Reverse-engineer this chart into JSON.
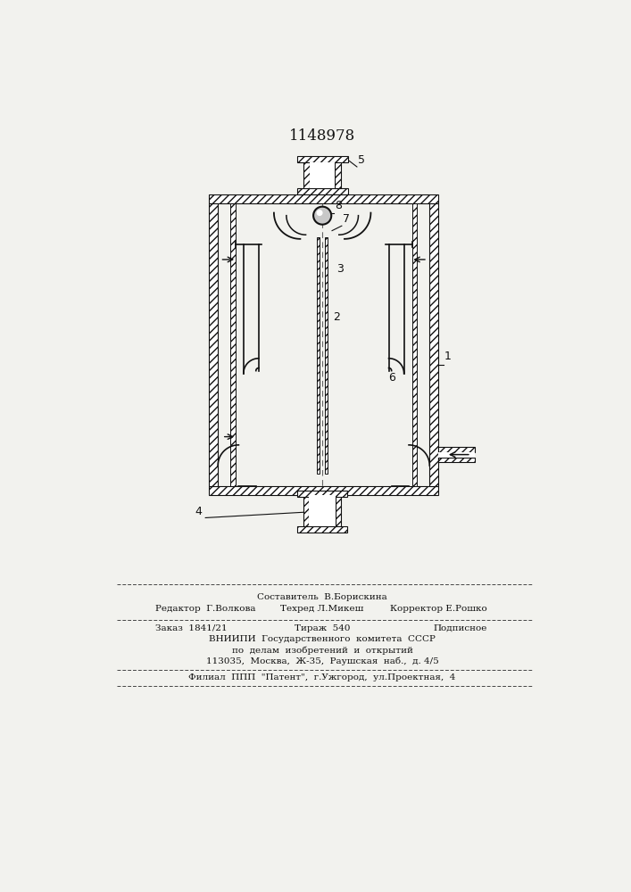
{
  "title": "1148978",
  "bg_color": "#f2f2ee",
  "line_color": "#111111",
  "title_fontsize": 12,
  "footer": {
    "line1": "Составитель  В.Борискина",
    "line2_left": "Редактор  Г.Волкова",
    "line2_mid": "Техред Л.Микеш",
    "line2_right": "Корректор Е.Рошко",
    "line3_left": "Заказ  1841/21",
    "line3_mid": "Тираж  540",
    "line3_right": "Подписное",
    "line4": "ВНИИПИ  Государственного  комитета  СССР",
    "line5": "по  делам  изобретений  и  открытий",
    "line6": "113035,  Москва,  Ж-35,  Раушская  наб.,  д. 4/5",
    "line7": "Филиал  ППП  \"Патент\",  г.Ужгород,  ул.Проектная,  4"
  }
}
